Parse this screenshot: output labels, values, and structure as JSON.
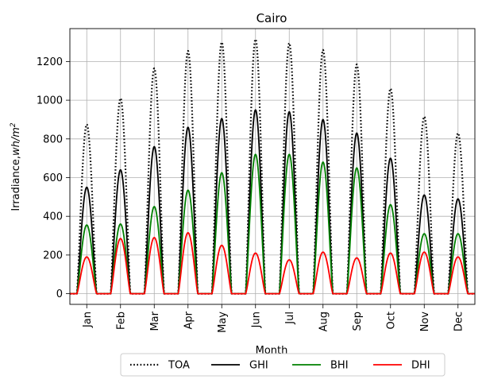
{
  "chart_data": {
    "type": "line",
    "title": "Cairo",
    "xlabel": "Month",
    "ylabel": "Irradiance, wh/m²",
    "ylabel_main": "Irradiance,",
    "ylabel_unit": "wh/m",
    "ylabel_exp": "2",
    "categories": [
      "Jan",
      "Feb",
      "Mar",
      "Apr",
      "May",
      "Jun",
      "Jul",
      "Aug",
      "Sep",
      "Oct",
      "Nov",
      "Dec"
    ],
    "yticks": [
      0,
      200,
      400,
      600,
      800,
      1000,
      1200
    ],
    "ylim": [
      -55,
      1370
    ],
    "xlim": [
      0,
      12
    ],
    "grid": true,
    "legend_placement": "bottom-center",
    "day_start_hour": 5,
    "day_end_hour": 19,
    "series": [
      {
        "name": "TOA",
        "color": "#000000",
        "style": "dotted",
        "values": [
          875,
          1010,
          1165,
          1255,
          1300,
          1315,
          1295,
          1260,
          1185,
          1060,
          915,
          830
        ]
      },
      {
        "name": "GHI",
        "color": "#000000",
        "style": "solid",
        "values": [
          550,
          640,
          760,
          860,
          905,
          950,
          940,
          900,
          830,
          700,
          510,
          490
        ]
      },
      {
        "name": "BHI",
        "color": "#008000",
        "style": "solid",
        "values": [
          355,
          360,
          450,
          535,
          625,
          720,
          720,
          680,
          650,
          460,
          310,
          310
        ]
      },
      {
        "name": "DHI",
        "color": "#ff0000",
        "style": "solid",
        "values": [
          190,
          285,
          290,
          315,
          250,
          210,
          175,
          215,
          185,
          210,
          215,
          190
        ]
      }
    ]
  }
}
